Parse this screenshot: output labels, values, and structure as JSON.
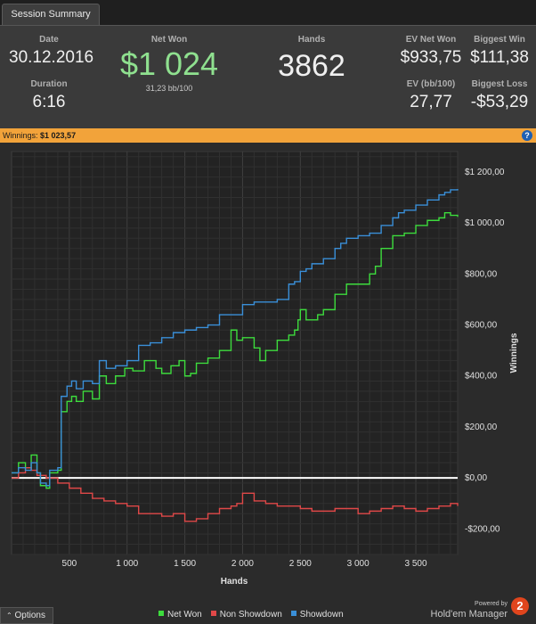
{
  "tab": {
    "label": "Session Summary"
  },
  "summary": {
    "date_label": "Date",
    "date_value": "30.12.2016",
    "duration_label": "Duration",
    "duration_value": "6:16",
    "netwon_label": "Net Won",
    "netwon_value": "$1 024",
    "netwon_sub": "31,23 bb/100",
    "hands_label": "Hands",
    "hands_value": "3862",
    "ev_net_label": "EV Net Won",
    "ev_net_value": "$933,75",
    "ev_bb_label": "EV (bb/100)",
    "ev_bb_value": "27,77",
    "biggest_win_label": "Biggest Win",
    "biggest_win_value": "$111,38",
    "biggest_loss_label": "Biggest Loss",
    "biggest_loss_value": "-$53,29"
  },
  "winnings_bar": {
    "label": "Winnings:",
    "value": "$1 023,57",
    "help_icon": "question-icon"
  },
  "footer": {
    "options_label": "Options",
    "powered_by": "Powered by",
    "brand": "Hold'em Manager",
    "brand_logo_text": "2"
  },
  "colors": {
    "net_won": "#3ddc3d",
    "non_showdown": "#e04848",
    "showdown": "#3a8fd8",
    "accent": "#f2a33a"
  },
  "chart_data": {
    "type": "line",
    "xlabel": "Hands",
    "ylabel": "Winnings",
    "xlim": [
      0,
      3862
    ],
    "ylim": [
      -300,
      1280
    ],
    "x_ticks": [
      500,
      1000,
      1500,
      2000,
      2500,
      3000,
      3500
    ],
    "x_tick_labels": [
      "500",
      "1 000",
      "1 500",
      "2 000",
      "2 500",
      "3 000",
      "3 500"
    ],
    "y_ticks": [
      -200,
      0,
      200,
      400,
      600,
      800,
      1000,
      1200
    ],
    "y_tick_labels": [
      "-$200,00",
      "$0,00",
      "$200,00",
      "$400,00",
      "$600,00",
      "$800,00",
      "$1 000,00",
      "$1 200,00"
    ],
    "grid": true,
    "legend_position": "bottom",
    "series": [
      {
        "name": "Net Won",
        "color": "#3ddc3d",
        "x": [
          0,
          60,
          120,
          170,
          220,
          250,
          300,
          330,
          400,
          430,
          480,
          520,
          560,
          620,
          700,
          760,
          820,
          900,
          980,
          1050,
          1150,
          1250,
          1300,
          1380,
          1450,
          1500,
          1550,
          1600,
          1700,
          1800,
          1900,
          1950,
          2000,
          2100,
          2150,
          2200,
          2300,
          2350,
          2400,
          2450,
          2480,
          2500,
          2550,
          2650,
          2700,
          2800,
          2900,
          3000,
          3100,
          3150,
          3200,
          3300,
          3400,
          3500,
          3600,
          3700,
          3750,
          3800,
          3862
        ],
        "y": [
          20,
          60,
          40,
          90,
          20,
          -30,
          -40,
          20,
          30,
          260,
          300,
          320,
          300,
          340,
          310,
          400,
          370,
          400,
          430,
          420,
          460,
          430,
          410,
          440,
          460,
          400,
          410,
          450,
          470,
          500,
          580,
          540,
          550,
          510,
          460,
          500,
          540,
          540,
          560,
          580,
          620,
          660,
          620,
          640,
          660,
          720,
          760,
          760,
          800,
          830,
          900,
          950,
          960,
          990,
          1010,
          1020,
          1040,
          1030,
          1024
        ]
      },
      {
        "name": "Non Showdown",
        "color": "#e04848",
        "x": [
          0,
          60,
          120,
          170,
          220,
          300,
          400,
          500,
          600,
          700,
          800,
          900,
          1000,
          1100,
          1200,
          1300,
          1400,
          1500,
          1600,
          1700,
          1800,
          1900,
          1950,
          2000,
          2100,
          2200,
          2300,
          2400,
          2500,
          2600,
          2700,
          2800,
          2900,
          3000,
          3100,
          3200,
          3300,
          3400,
          3500,
          3600,
          3700,
          3800,
          3862
        ],
        "y": [
          0,
          20,
          40,
          30,
          10,
          0,
          -20,
          -40,
          -60,
          -80,
          -90,
          -100,
          -110,
          -140,
          -140,
          -150,
          -140,
          -170,
          -160,
          -140,
          -120,
          -110,
          -100,
          -60,
          -90,
          -100,
          -110,
          -110,
          -120,
          -130,
          -130,
          -120,
          -120,
          -140,
          -130,
          -120,
          -110,
          -120,
          -130,
          -120,
          -110,
          -100,
          -110
        ]
      },
      {
        "name": "Showdown",
        "color": "#3a8fd8",
        "x": [
          0,
          60,
          120,
          170,
          220,
          250,
          300,
          330,
          400,
          430,
          480,
          520,
          560,
          620,
          700,
          760,
          820,
          900,
          1000,
          1100,
          1200,
          1300,
          1400,
          1500,
          1600,
          1700,
          1800,
          1900,
          2000,
          2100,
          2200,
          2300,
          2400,
          2450,
          2500,
          2550,
          2600,
          2700,
          2800,
          2850,
          2900,
          3000,
          3100,
          3200,
          3300,
          3350,
          3400,
          3500,
          3600,
          3700,
          3750,
          3800,
          3862
        ],
        "y": [
          20,
          40,
          30,
          60,
          20,
          -20,
          -30,
          30,
          40,
          320,
          360,
          380,
          350,
          380,
          370,
          460,
          430,
          440,
          460,
          520,
          530,
          550,
          570,
          580,
          590,
          600,
          640,
          640,
          680,
          690,
          690,
          700,
          760,
          770,
          810,
          820,
          840,
          860,
          900,
          920,
          940,
          950,
          960,
          990,
          1020,
          1040,
          1050,
          1070,
          1090,
          1110,
          1120,
          1130,
          1133
        ]
      }
    ]
  }
}
